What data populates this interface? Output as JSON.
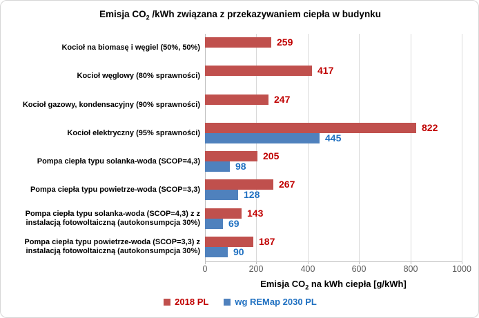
{
  "title": {
    "prefix": "Emisja CO",
    "sub": "2",
    "suffix": " /kWh związana z przekazywaniem ciepła w budynku"
  },
  "x_axis": {
    "label": {
      "prefix": "Emisja CO",
      "sub": "2",
      "suffix": " na kWh ciepła [g/kWh]"
    },
    "min": 0,
    "max": 1000,
    "tick_labels": [
      "0",
      "200",
      "400",
      "600",
      "800",
      "1000"
    ]
  },
  "legend": [
    {
      "label": "2018 PL",
      "swatch_color": "#C0504D",
      "text_color": "#C00000"
    },
    {
      "label": "wg REMap 2030 PL",
      "swatch_color": "#4F81BD",
      "text_color": "#1F70C1"
    }
  ],
  "colors": {
    "gridline": "#D9D9D9",
    "axis_line": "#BFBFBF",
    "tick_text": "#595959"
  },
  "chart_data": {
    "type": "bar",
    "orientation": "horizontal",
    "title": "Emisja CO2 /kWh związana z przekazywaniem ciepła w budynku",
    "xlabel": "Emisja CO2 na kWh ciepła [g/kWh]",
    "xlim": [
      0,
      1000
    ],
    "xticks": [
      0,
      200,
      400,
      600,
      800,
      1000
    ],
    "grid": true,
    "legend_position": "bottom",
    "categories": [
      "Kocioł na biomasę i węgiel (50%, 50%)",
      "Kocioł węglowy  (80% sprawności)",
      "Kocioł gazowy, kondensacyjny (90% sprawności)",
      "Kocioł elektryczny (95% sprawności)",
      "Pompa ciepła typu solanka-woda (SCOP=4,3)",
      "Pompa ciepła typu powietrze-woda (SCOP=3,3)",
      "Pompa ciepła typu solanka-woda (SCOP=4,3) z z instalacją fotowoltaiczną (autokonsumpcja 30%)",
      "Pompa ciepła typu powietrze-woda (SCOP=3,3) z instalacją fotowoltaiczną (autokonsumpcja 30%)"
    ],
    "series": [
      {
        "name": "2018 PL",
        "color": "#C0504D",
        "label_color": "#C00000",
        "values": [
          259,
          417,
          247,
          822,
          205,
          267,
          143,
          187
        ]
      },
      {
        "name": "wg REMap 2030 PL",
        "color": "#4F81BD",
        "label_color": "#1F70C1",
        "values": [
          null,
          null,
          null,
          445,
          98,
          128,
          69,
          90
        ]
      }
    ]
  }
}
